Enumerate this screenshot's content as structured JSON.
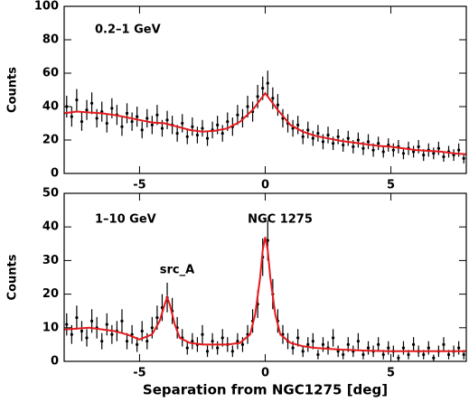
{
  "chart_data": [
    {
      "type": "errorbar",
      "annotation": "0.2–1 GeV",
      "ylabel": "Counts",
      "xlim": [
        -8,
        8
      ],
      "xticks": [
        -5,
        0,
        5
      ],
      "ylim": [
        0,
        100
      ],
      "yticks": [
        0,
        20,
        40,
        60,
        80,
        100
      ],
      "color": "#000000",
      "model_color": "#e41a1c",
      "x": [
        -7.9,
        -7.7,
        -7.5,
        -7.3,
        -7.1,
        -6.9,
        -6.7,
        -6.5,
        -6.3,
        -6.1,
        -5.9,
        -5.7,
        -5.5,
        -5.3,
        -5.1,
        -4.9,
        -4.7,
        -4.5,
        -4.3,
        -4.1,
        -3.9,
        -3.7,
        -3.5,
        -3.3,
        -3.1,
        -2.9,
        -2.7,
        -2.5,
        -2.3,
        -2.1,
        -1.9,
        -1.7,
        -1.5,
        -1.3,
        -1.1,
        -0.9,
        -0.7,
        -0.5,
        -0.3,
        -0.1,
        0.1,
        0.3,
        0.5,
        0.7,
        0.9,
        1.1,
        1.3,
        1.5,
        1.7,
        1.9,
        2.1,
        2.3,
        2.5,
        2.7,
        2.9,
        3.1,
        3.3,
        3.5,
        3.7,
        3.9,
        4.1,
        4.3,
        4.5,
        4.7,
        4.9,
        5.1,
        5.3,
        5.5,
        5.7,
        5.9,
        6.1,
        6.3,
        6.5,
        6.7,
        6.9,
        7.1,
        7.3,
        7.5,
        7.7,
        7.9
      ],
      "values": [
        40,
        34,
        44,
        31,
        38,
        42,
        33,
        37,
        30,
        39,
        35,
        28,
        36,
        31,
        34,
        26,
        33,
        29,
        35,
        27,
        32,
        29,
        24,
        30,
        22,
        28,
        23,
        27,
        21,
        26,
        29,
        24,
        31,
        28,
        35,
        33,
        40,
        37,
        46,
        51,
        54,
        45,
        41,
        33,
        30,
        27,
        29,
        22,
        26,
        21,
        24,
        19,
        23,
        18,
        22,
        17,
        21,
        16,
        20,
        15,
        19,
        14,
        18,
        13,
        17,
        14,
        16,
        12,
        15,
        13,
        16,
        11,
        14,
        12,
        15,
        10,
        13,
        11,
        14,
        9
      ],
      "errors": [
        6.5,
        6,
        6.5,
        5.5,
        6,
        6.5,
        5.5,
        6,
        5.5,
        6,
        6,
        5.5,
        6,
        5.5,
        6,
        5,
        5.5,
        5.5,
        6,
        5,
        5.5,
        5.5,
        5,
        5.5,
        4.5,
        5.5,
        5,
        5,
        4.5,
        5,
        5.5,
        5,
        5.5,
        5.5,
        6,
        5.5,
        6.5,
        6,
        7,
        7,
        7.5,
        6.5,
        6.5,
        5.5,
        5.5,
        5,
        5.5,
        4.5,
        5,
        4.5,
        5,
        4.5,
        5,
        4,
        4.5,
        4,
        4.5,
        4,
        4.5,
        4,
        4.5,
        4,
        4,
        3.5,
        4,
        4,
        4,
        3.5,
        4,
        3.5,
        4,
        3.5,
        4,
        3.5,
        4,
        3,
        3.5,
        3.5,
        4,
        3
      ],
      "model_x": [
        -8,
        -7.5,
        -7,
        -6.5,
        -6,
        -5.5,
        -5,
        -4.5,
        -4,
        -3.5,
        -3,
        -2.5,
        -2,
        -1.5,
        -1,
        -0.5,
        0,
        0.5,
        1,
        1.5,
        2,
        2.5,
        3,
        3.5,
        4,
        4.5,
        5,
        5.5,
        6,
        6.5,
        7,
        7.5,
        8
      ],
      "model": [
        36,
        37,
        36.5,
        36,
        35,
        33.5,
        32,
        30.5,
        30,
        28,
        26,
        25,
        25.5,
        27,
        31,
        38,
        48,
        38,
        29,
        25,
        22.5,
        21,
        19.5,
        18.5,
        17.5,
        16.5,
        16,
        15,
        14,
        13.5,
        13,
        12,
        11.5
      ]
    },
    {
      "type": "errorbar",
      "annotations": [
        "1–10 GeV",
        "src_A",
        "NGC 1275"
      ],
      "ylabel": "Counts",
      "xlabel": "Separation from NGC1275 [deg]",
      "xlim": [
        -8,
        8
      ],
      "xticks": [
        -5,
        0,
        5
      ],
      "ylim": [
        0,
        50
      ],
      "yticks": [
        0,
        10,
        20,
        30,
        40,
        50
      ],
      "color": "#000000",
      "model_color": "#e41a1c",
      "x": [
        -7.9,
        -7.7,
        -7.5,
        -7.3,
        -7.1,
        -6.9,
        -6.7,
        -6.5,
        -6.3,
        -6.1,
        -5.9,
        -5.7,
        -5.5,
        -5.3,
        -5.1,
        -4.9,
        -4.7,
        -4.5,
        -4.3,
        -4.1,
        -3.9,
        -3.7,
        -3.5,
        -3.3,
        -3.1,
        -2.9,
        -2.7,
        -2.5,
        -2.3,
        -2.1,
        -1.9,
        -1.7,
        -1.5,
        -1.3,
        -1.1,
        -0.9,
        -0.7,
        -0.5,
        -0.3,
        -0.1,
        0.1,
        0.3,
        0.5,
        0.7,
        0.9,
        1.1,
        1.3,
        1.5,
        1.7,
        1.9,
        2.1,
        2.3,
        2.5,
        2.7,
        2.9,
        3.1,
        3.3,
        3.5,
        3.7,
        3.9,
        4.1,
        4.3,
        4.5,
        4.7,
        4.9,
        5.1,
        5.3,
        5.5,
        5.7,
        5.9,
        6.1,
        6.3,
        6.5,
        6.7,
        6.9,
        7.1,
        7.3,
        7.5,
        7.7,
        7.9
      ],
      "values": [
        11,
        8,
        13,
        9,
        7,
        12,
        10,
        6,
        11,
        8,
        9,
        12,
        6,
        8,
        5,
        9,
        6,
        10,
        13,
        16,
        19,
        15,
        10,
        7,
        4,
        6,
        5,
        8,
        3,
        6,
        4,
        7,
        5,
        3,
        6,
        5,
        8,
        12,
        17,
        31,
        36,
        20,
        12,
        8,
        6,
        4,
        7,
        3,
        5,
        6,
        2,
        5,
        4,
        7,
        3,
        2,
        5,
        3,
        6,
        2,
        4,
        3,
        5,
        2,
        4,
        3,
        1,
        4,
        2,
        5,
        3,
        2,
        4,
        1,
        3,
        5,
        2,
        3,
        4,
        2
      ],
      "errors": [
        3.3,
        2.8,
        3.6,
        3,
        2.6,
        3.5,
        3.2,
        2.4,
        3.3,
        2.8,
        3,
        3.5,
        2.4,
        2.8,
        2.2,
        3,
        2.4,
        3.2,
        3.6,
        4,
        4.4,
        3.9,
        3.2,
        2.6,
        2,
        2.4,
        2.2,
        2.8,
        1.7,
        2.4,
        2,
        2.6,
        2.2,
        1.7,
        2.4,
        2.2,
        2.8,
        3.5,
        4.1,
        5.6,
        6,
        4.5,
        3.5,
        2.8,
        2.4,
        2,
        2.6,
        1.7,
        2.2,
        2.4,
        1.4,
        2.2,
        2,
        2.6,
        1.7,
        1.4,
        2.2,
        1.7,
        2.4,
        1.4,
        2,
        1.7,
        2.2,
        1.4,
        2,
        1.7,
        1,
        2,
        1.4,
        2.2,
        1.7,
        1.4,
        2,
        1,
        1.7,
        2.2,
        1.4,
        1.7,
        2,
        1.4
      ],
      "model_x": [
        -8,
        -7,
        -6,
        -5.5,
        -5,
        -4.5,
        -4.2,
        -4,
        -3.9,
        -3.8,
        -3.6,
        -3.4,
        -3,
        -2.5,
        -2,
        -1.5,
        -1,
        -0.6,
        -0.4,
        -0.2,
        -0.1,
        0,
        0.1,
        0.2,
        0.4,
        0.6,
        1,
        1.5,
        2,
        3,
        4,
        5,
        6,
        7,
        8
      ],
      "model": [
        9.5,
        10,
        9,
        8,
        6.5,
        8,
        12,
        17,
        19,
        17,
        11,
        7,
        5.5,
        5,
        5,
        5,
        5.5,
        8,
        14,
        25,
        33,
        37,
        33,
        25,
        14,
        8,
        5.5,
        4.5,
        4,
        3.5,
        3.2,
        3,
        3,
        3,
        3
      ]
    }
  ]
}
